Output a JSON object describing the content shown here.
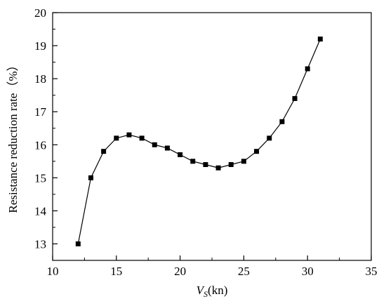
{
  "chart_data": {
    "type": "line",
    "title": "",
    "xlabel": {
      "main": "V",
      "subscript": "S",
      "unit": "(kn)"
    },
    "ylabel": "Resistance reduction rate（%）",
    "xlim": [
      10,
      35
    ],
    "ylim": [
      12.5,
      20
    ],
    "xticks": [
      10,
      15,
      20,
      25,
      30,
      35
    ],
    "yticks": [
      13,
      14,
      15,
      16,
      17,
      18,
      19,
      20
    ],
    "grid": false,
    "legend": "none",
    "series": [
      {
        "marker": "square",
        "color": "#000000",
        "x": [
          12,
          13,
          14,
          15,
          16,
          17,
          18,
          19,
          20,
          21,
          22,
          23,
          24,
          25,
          26,
          27,
          28,
          29,
          30,
          31
        ],
        "y": [
          13.0,
          15.0,
          15.8,
          16.2,
          16.3,
          16.2,
          16.0,
          15.9,
          15.7,
          15.5,
          15.4,
          15.3,
          15.4,
          15.5,
          15.8,
          16.2,
          16.7,
          17.4,
          18.3,
          19.2
        ]
      }
    ]
  }
}
